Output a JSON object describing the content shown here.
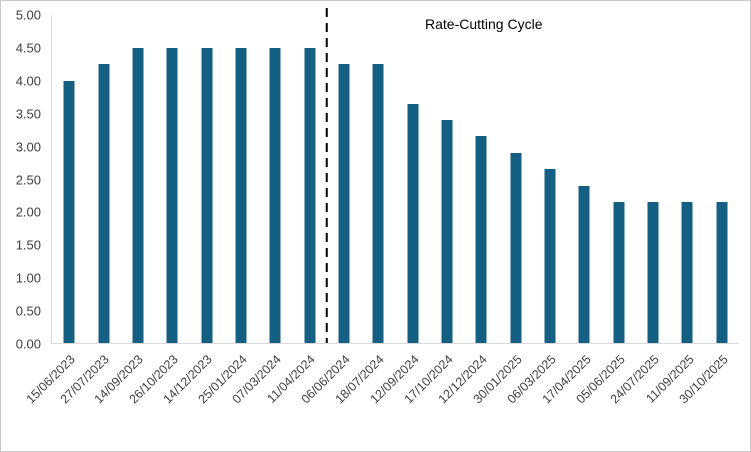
{
  "chart_data": {
    "type": "bar",
    "title": "",
    "annotation": {
      "text": "Rate-Cutting Cycle",
      "divider_after_index": 7
    },
    "x": [
      "15/06/2023",
      "27/07/2023",
      "14/09/2023",
      "26/10/2023",
      "14/12/2023",
      "25/01/2024",
      "07/03/2024",
      "11/04/2024",
      "06/06/2024",
      "18/07/2024",
      "12/09/2024",
      "17/10/2024",
      "12/12/2024",
      "30/01/2025",
      "06/03/2025",
      "17/04/2025",
      "05/06/2025",
      "24/07/2025",
      "11/09/2025",
      "30/10/2025"
    ],
    "values": [
      4.0,
      4.25,
      4.5,
      4.5,
      4.5,
      4.5,
      4.5,
      4.5,
      4.25,
      4.25,
      3.65,
      3.4,
      3.15,
      2.9,
      2.65,
      2.4,
      2.15,
      2.15,
      2.15,
      2.15
    ],
    "xlabel": "",
    "ylabel": "",
    "ylim": [
      0,
      5
    ],
    "ytick_step": 0.5,
    "ytick_labels": [
      "0.00",
      "0.50",
      "1.00",
      "1.50",
      "2.00",
      "2.50",
      "3.00",
      "3.50",
      "4.00",
      "4.50",
      "5.00"
    ],
    "grid": false,
    "legend_position": "none",
    "colors": {
      "bar": "#156082",
      "divider": "#000000",
      "axis_line": "#d9d9d9",
      "labels": "#3f3f3f"
    }
  }
}
